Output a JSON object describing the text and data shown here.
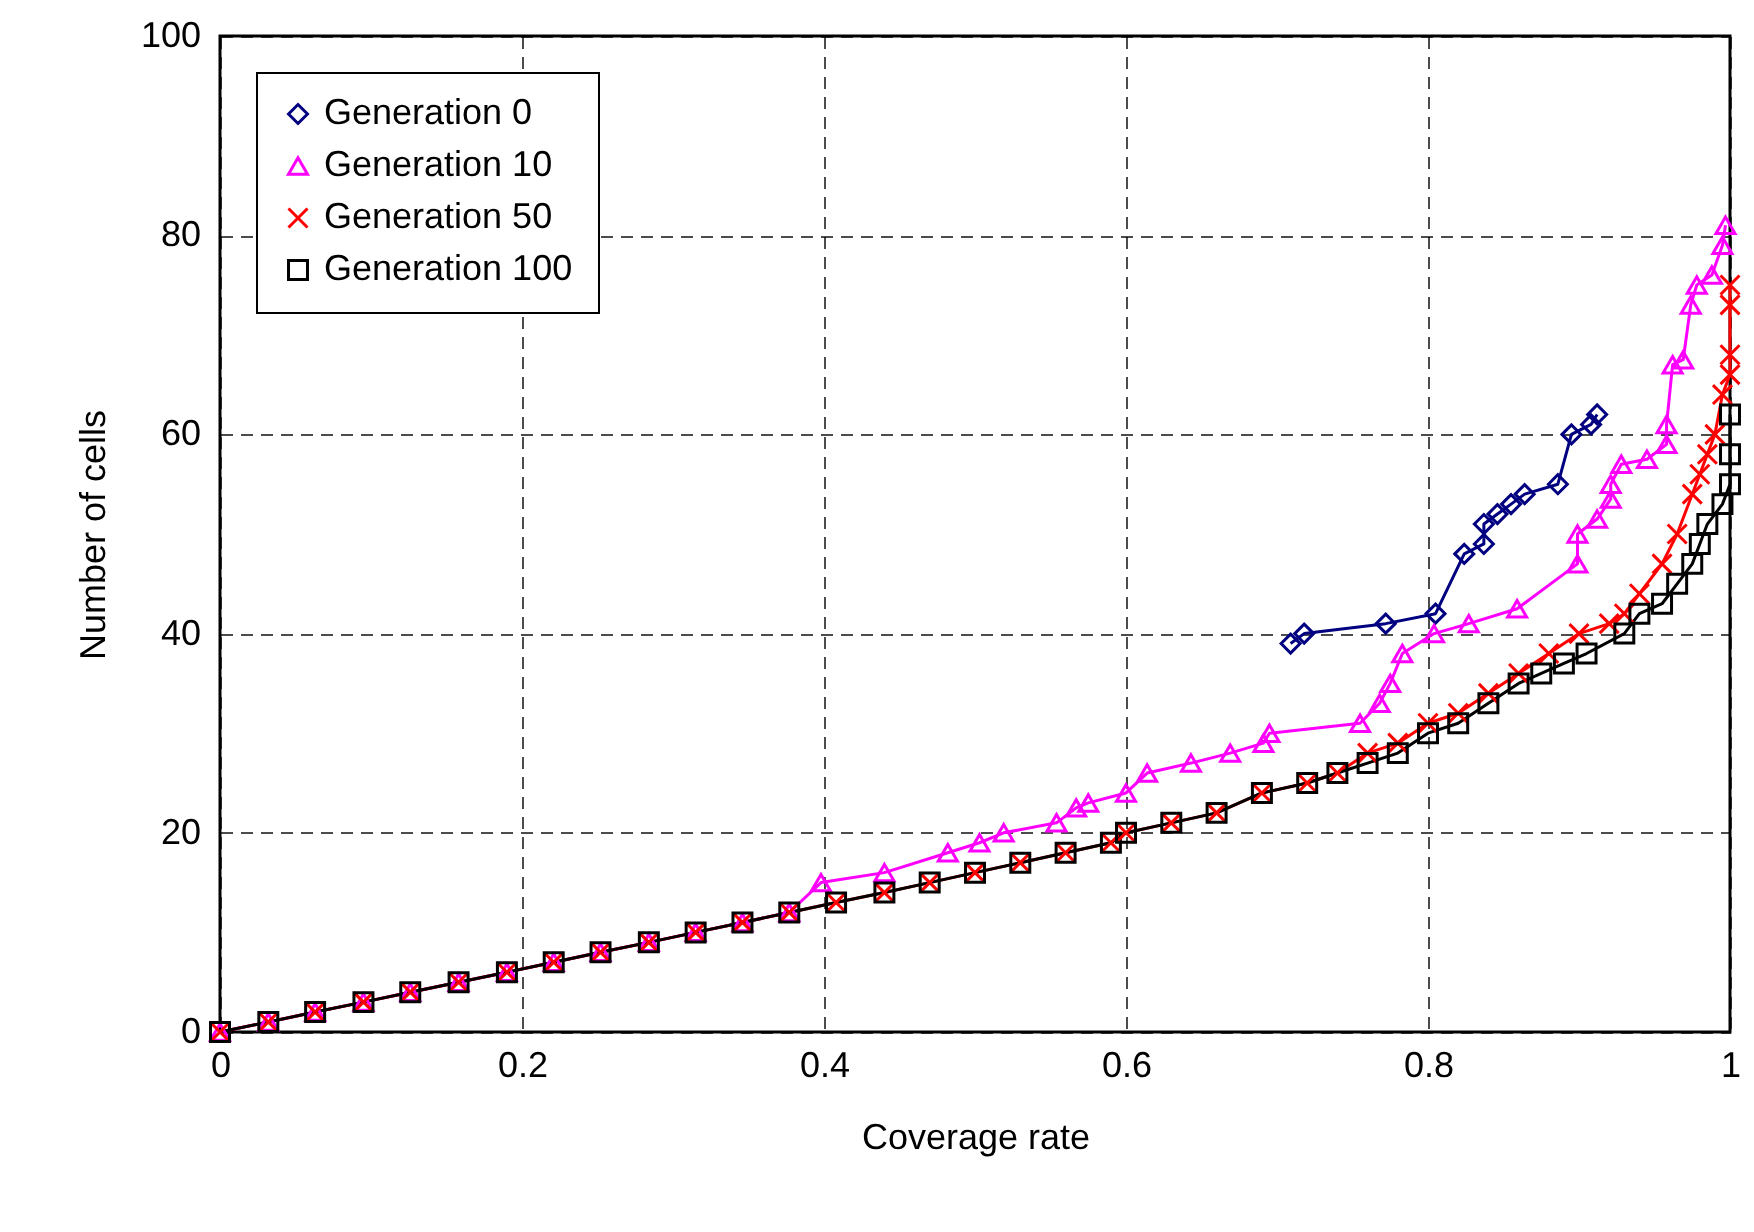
{
  "chart_data": {
    "type": "line",
    "xlabel": "Coverage rate",
    "ylabel": "Number of cells",
    "xlim": [
      0,
      1
    ],
    "xticks": [
      0,
      0.2,
      0.4,
      0.6,
      0.8,
      1
    ],
    "ylim": [
      0,
      100
    ],
    "yticks": [
      0,
      20,
      40,
      60,
      80,
      100
    ],
    "grid": true,
    "legend": "top left",
    "line_style": "solid",
    "series": [
      {
        "name": "Generation 0",
        "color": "#000080",
        "marker": "diamond",
        "x": [
          0.709,
          0.718,
          0.772,
          0.805,
          0.824,
          0.837,
          0.837,
          0.846,
          0.855,
          0.864,
          0.886,
          0.895,
          0.908,
          0.912
        ],
        "values": [
          39,
          40,
          41,
          42,
          48,
          49,
          51,
          52,
          53,
          54,
          55,
          60,
          61,
          62
        ]
      },
      {
        "name": "Generation 10",
        "color": "#ff00ff",
        "marker": "triangle",
        "x": [
          0,
          0.032,
          0.063,
          0.095,
          0.126,
          0.158,
          0.19,
          0.221,
          0.252,
          0.284,
          0.315,
          0.346,
          0.377,
          0.398,
          0.44,
          0.482,
          0.503,
          0.519,
          0.554,
          0.567,
          0.575,
          0.6,
          0.614,
          0.643,
          0.669,
          0.691,
          0.695,
          0.755,
          0.768,
          0.775,
          0.783,
          0.804,
          0.827,
          0.859,
          0.899,
          0.899,
          0.912,
          0.921,
          0.921,
          0.928,
          0.945,
          0.958,
          0.958,
          0.962,
          0.969,
          0.974,
          0.978,
          0.988,
          0.995,
          0.997
        ],
        "values": [
          0,
          1,
          2,
          3,
          4,
          5,
          6,
          7,
          8,
          9,
          10,
          11,
          12,
          15,
          16,
          18,
          19,
          20,
          21,
          22.5,
          23,
          24,
          26,
          27,
          28,
          29,
          30,
          31,
          33,
          35,
          38,
          40,
          41,
          42.5,
          47,
          50,
          51.5,
          53.5,
          55,
          57,
          57.5,
          59,
          61,
          67,
          67.5,
          73,
          75,
          76,
          79,
          81
        ]
      },
      {
        "name": "Generation 50",
        "color": "#ff0000",
        "marker": "cross",
        "x": [
          0,
          0.032,
          0.063,
          0.095,
          0.126,
          0.158,
          0.19,
          0.221,
          0.252,
          0.284,
          0.315,
          0.346,
          0.377,
          0.408,
          0.44,
          0.47,
          0.5,
          0.53,
          0.56,
          0.59,
          0.6,
          0.63,
          0.66,
          0.69,
          0.72,
          0.74,
          0.76,
          0.78,
          0.8,
          0.82,
          0.84,
          0.86,
          0.88,
          0.9,
          0.92,
          0.93,
          0.94,
          0.955,
          0.965,
          0.975,
          0.98,
          0.985,
          0.99,
          0.995,
          1,
          1,
          1,
          1
        ],
        "values": [
          0,
          1,
          2,
          3,
          4,
          5,
          6,
          7,
          8,
          9,
          10,
          11,
          12,
          13,
          14,
          15,
          16,
          17,
          18,
          19,
          20,
          21,
          22,
          24,
          25,
          26,
          28,
          29,
          31,
          32,
          34,
          36,
          38,
          40,
          41,
          42,
          44,
          47,
          50,
          54,
          56,
          58,
          60,
          64,
          66,
          68,
          73,
          75
        ]
      },
      {
        "name": "Generation 100",
        "color": "#000000",
        "marker": "square",
        "x": [
          0,
          0.032,
          0.063,
          0.095,
          0.126,
          0.158,
          0.19,
          0.221,
          0.252,
          0.284,
          0.315,
          0.346,
          0.377,
          0.408,
          0.44,
          0.47,
          0.5,
          0.53,
          0.56,
          0.59,
          0.6,
          0.63,
          0.66,
          0.69,
          0.72,
          0.74,
          0.76,
          0.78,
          0.8,
          0.82,
          0.84,
          0.86,
          0.875,
          0.89,
          0.905,
          0.93,
          0.94,
          0.955,
          0.965,
          0.975,
          0.98,
          0.985,
          0.995,
          1,
          1,
          1
        ],
        "values": [
          0,
          1,
          2,
          3,
          4,
          5,
          6,
          7,
          8,
          9,
          10,
          11,
          12,
          13,
          14,
          15,
          16,
          17,
          18,
          19,
          20,
          21,
          22,
          24,
          25,
          26,
          27,
          28,
          30,
          31,
          33,
          35,
          36,
          37,
          38,
          40,
          42,
          43,
          45,
          47,
          49,
          51,
          53,
          55,
          58,
          62
        ]
      }
    ]
  }
}
